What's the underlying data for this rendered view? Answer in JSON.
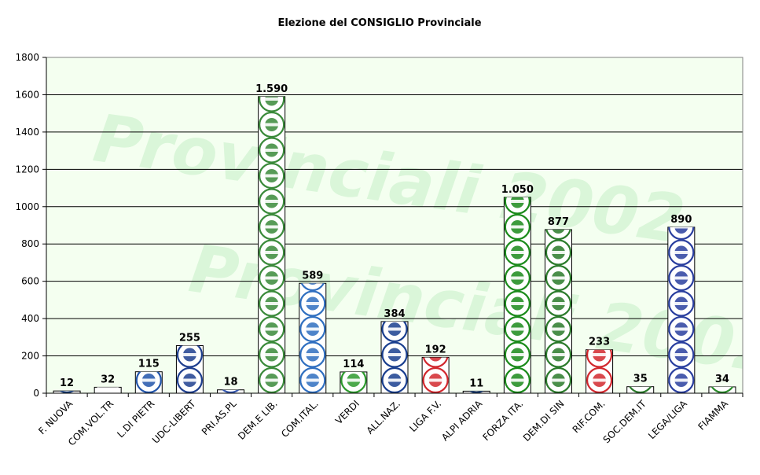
{
  "chart_data": {
    "type": "bar",
    "title": "Elezione del CONSIGLIO Provinciale",
    "xlabel": "",
    "ylabel": "",
    "ylim": [
      0,
      1800
    ],
    "yticks": [
      0,
      200,
      400,
      600,
      800,
      1000,
      1200,
      1400,
      1600,
      1800
    ],
    "ytick_labels": [
      "0",
      "200",
      "400",
      "600",
      "800",
      "1000",
      "1200",
      "1400",
      "1600",
      "1800"
    ],
    "grid": "horizontal",
    "legend": "none",
    "background_color": "#f4fff0",
    "watermark_text": "Provinciali 2002",
    "categories": [
      "F. NUOVA",
      "COM.VOL.TR",
      "L.DI PIETR",
      "UDC-LIBERT",
      "PRI.AS.PL",
      "DEM.E LIB.",
      "COM.ITAL.",
      "VERDI",
      "ALL.NAZ.",
      "LIGA F.V.",
      "ALPI ADRIA",
      "FORZA ITA.",
      "DEM.DI SIN",
      "RIF.COM.",
      "SOC.DEM.IT",
      "LEGA/LIGA",
      "FIAMMA"
    ],
    "values": [
      12,
      32,
      115,
      255,
      18,
      1590,
      589,
      114,
      384,
      192,
      11,
      1050,
      877,
      233,
      35,
      890,
      34
    ],
    "value_labels": [
      "12",
      "32",
      "115",
      "255",
      "18",
      "1.590",
      "589",
      "114",
      "384",
      "192",
      "11",
      "1.050",
      "877",
      "233",
      "35",
      "890",
      "34"
    ],
    "bar_styles": [
      {
        "fill": "#1a3f7a",
        "icon": "flame-logo"
      },
      {
        "fill": "#ffffff",
        "icon": "party-logo"
      },
      {
        "fill": "#2255aa",
        "icon": "dipietro-logo"
      },
      {
        "fill": "#1f3f8f",
        "icon": "udc-shield-logo"
      },
      {
        "fill": "#3355aa",
        "icon": "party-logo"
      },
      {
        "fill": "#3a8a3a",
        "icon": "daisy-logo"
      },
      {
        "fill": "#2f6fc0",
        "icon": "hammer-sickle-logo"
      },
      {
        "fill": "#2e9a2e",
        "icon": "sun-logo"
      },
      {
        "fill": "#1a3f8f",
        "icon": "alleanza-nazionale-logo"
      },
      {
        "fill": "#d2282e",
        "icon": "lion-logo"
      },
      {
        "fill": "#1a3f7a",
        "icon": "party-logo"
      },
      {
        "fill": "#1a8a1a",
        "icon": "forza-italia-logo"
      },
      {
        "fill": "#2a7a2a",
        "icon": "oak-tree-logo"
      },
      {
        "fill": "#d2282e",
        "icon": "hammer-sickle-logo"
      },
      {
        "fill": "#2a7a2a",
        "icon": "rose-logo"
      },
      {
        "fill": "#2a3f9f",
        "icon": "warrior-logo"
      },
      {
        "fill": "#2a8a2a",
        "icon": "flame-logo"
      }
    ]
  }
}
